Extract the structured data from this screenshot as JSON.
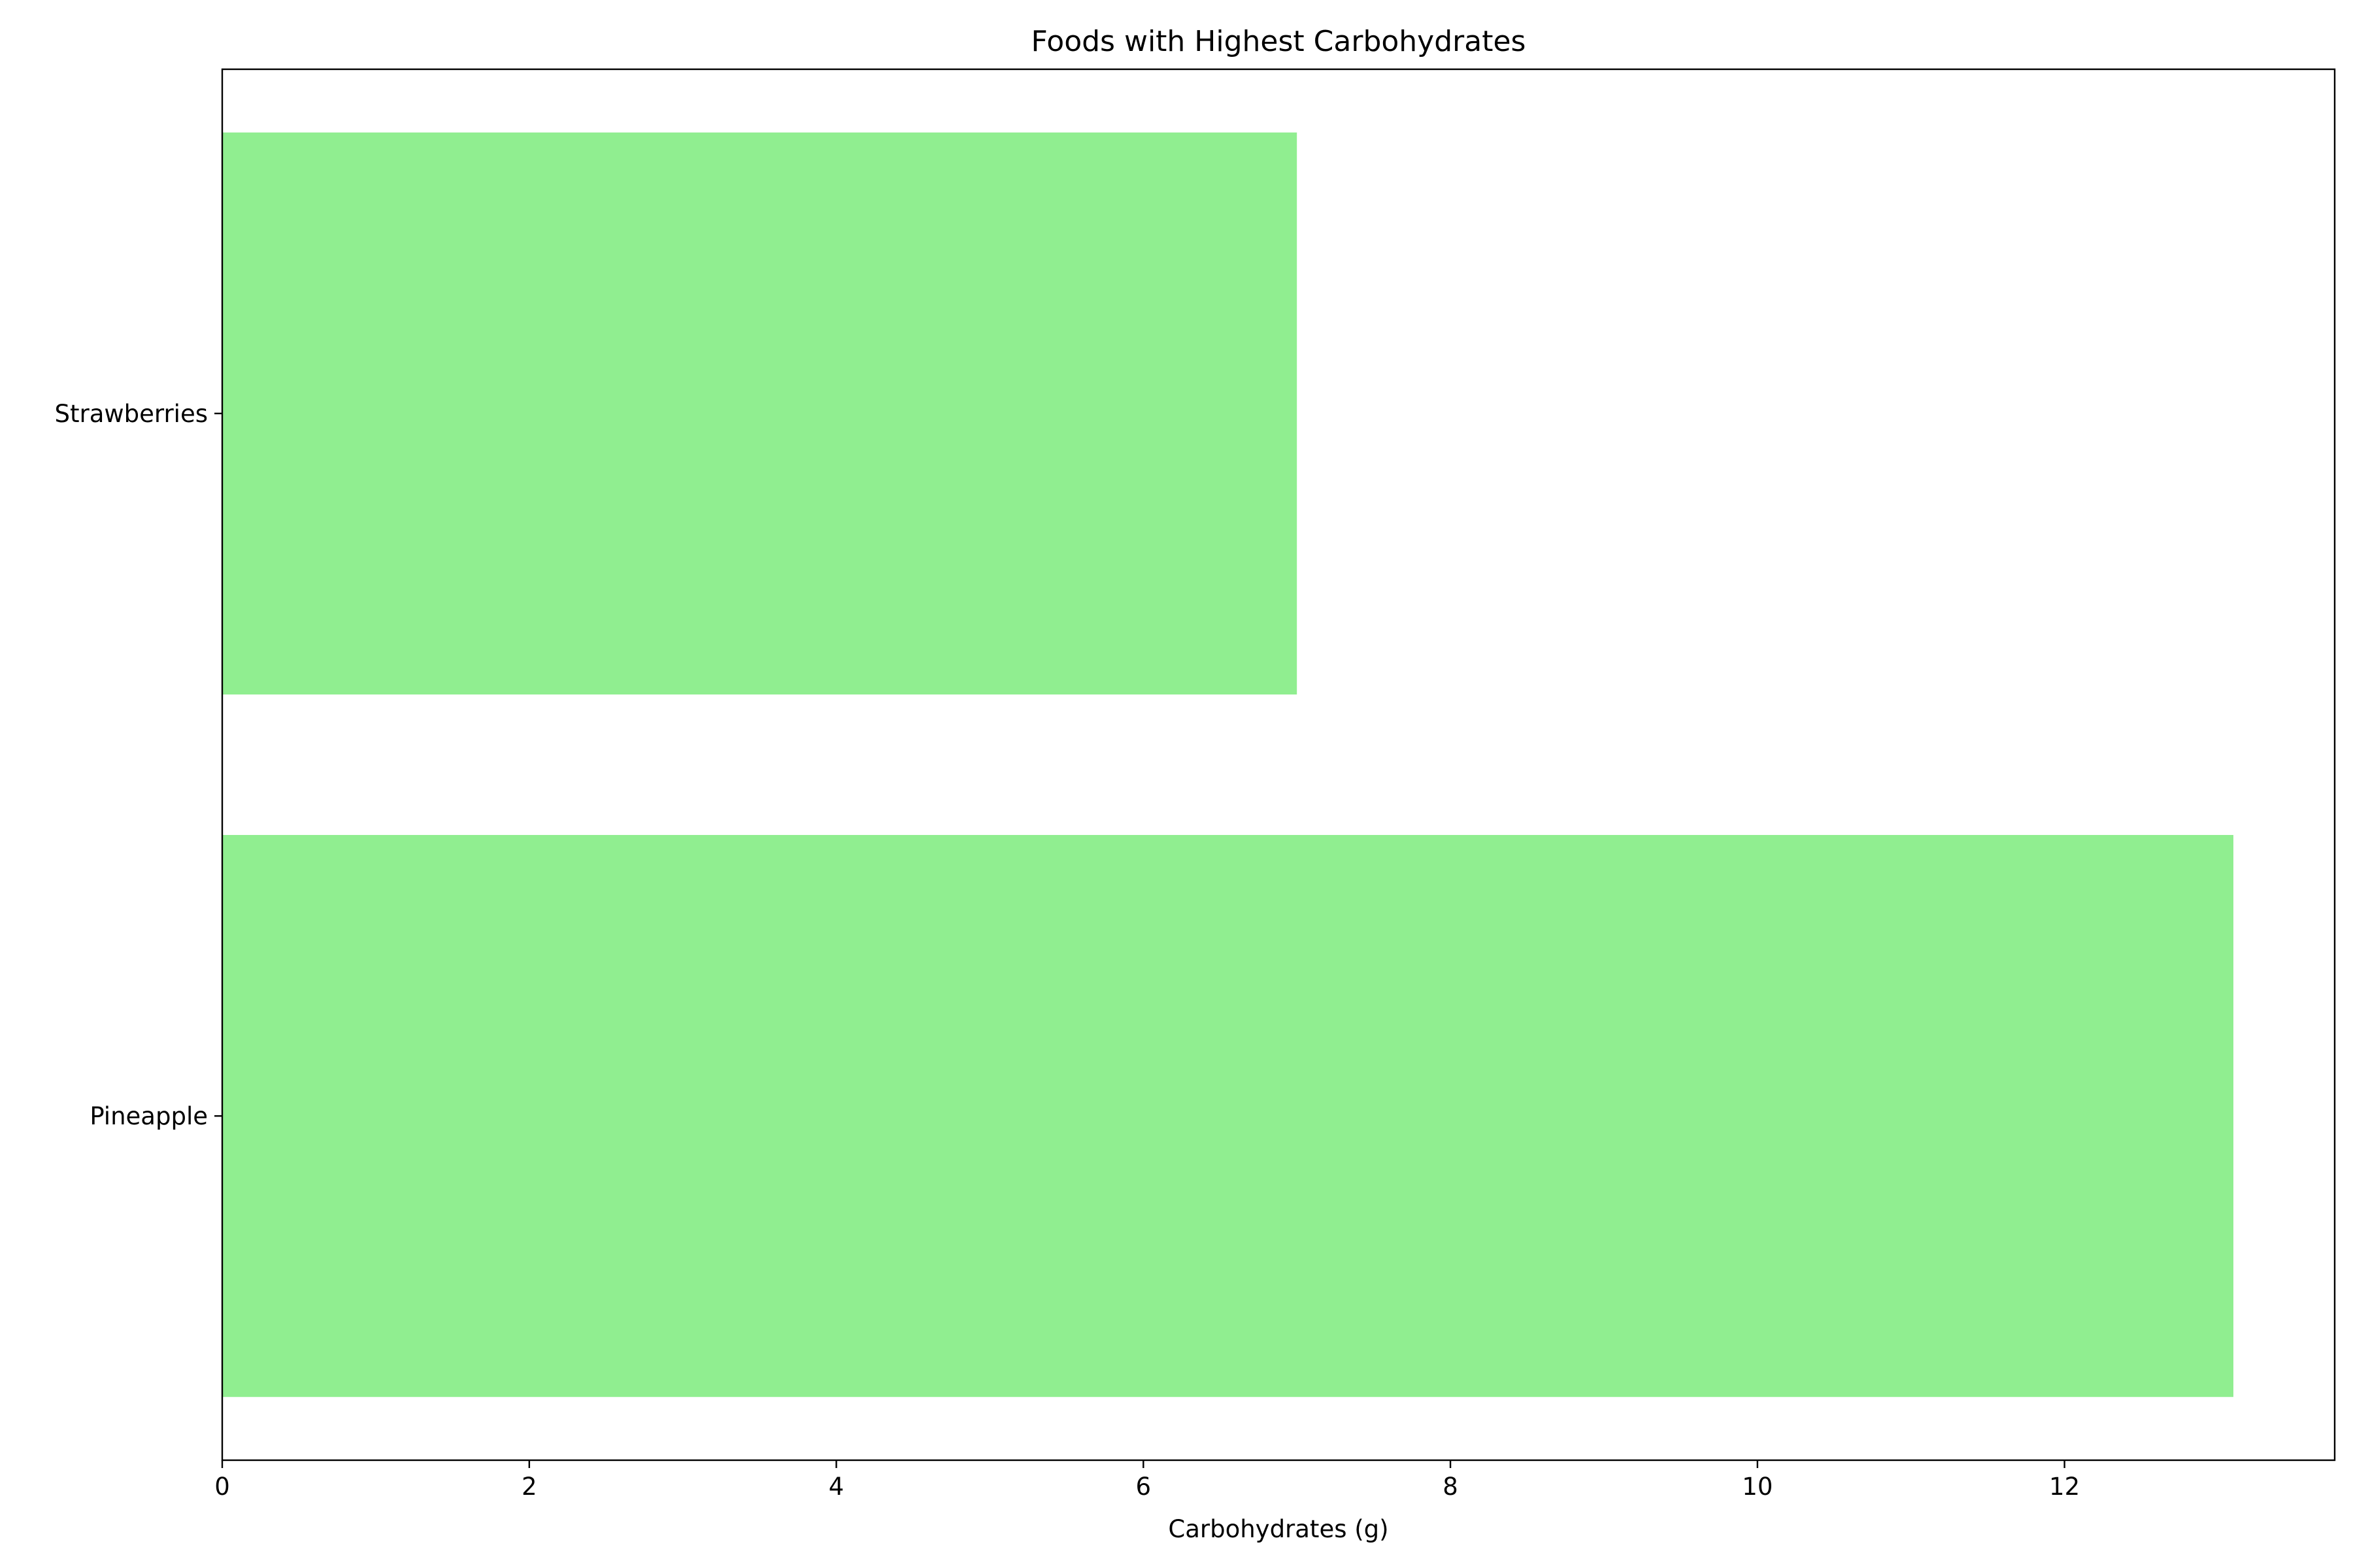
{
  "chart_data": {
    "type": "bar",
    "orientation": "horizontal",
    "title": "Foods with Highest Carbohydrates",
    "xlabel": "Carbohydrates (g)",
    "ylabel": "",
    "categories": [
      "Pineapple",
      "Strawberries"
    ],
    "values": [
      13.1,
      7.0
    ],
    "xlim": [
      0,
      13.76
    ],
    "xticks": [
      0,
      2,
      4,
      6,
      8,
      10,
      12
    ],
    "grid": false,
    "legend": "none",
    "colors": {
      "bar": "#90EE90",
      "axis": "#000000",
      "background": "#ffffff"
    }
  }
}
